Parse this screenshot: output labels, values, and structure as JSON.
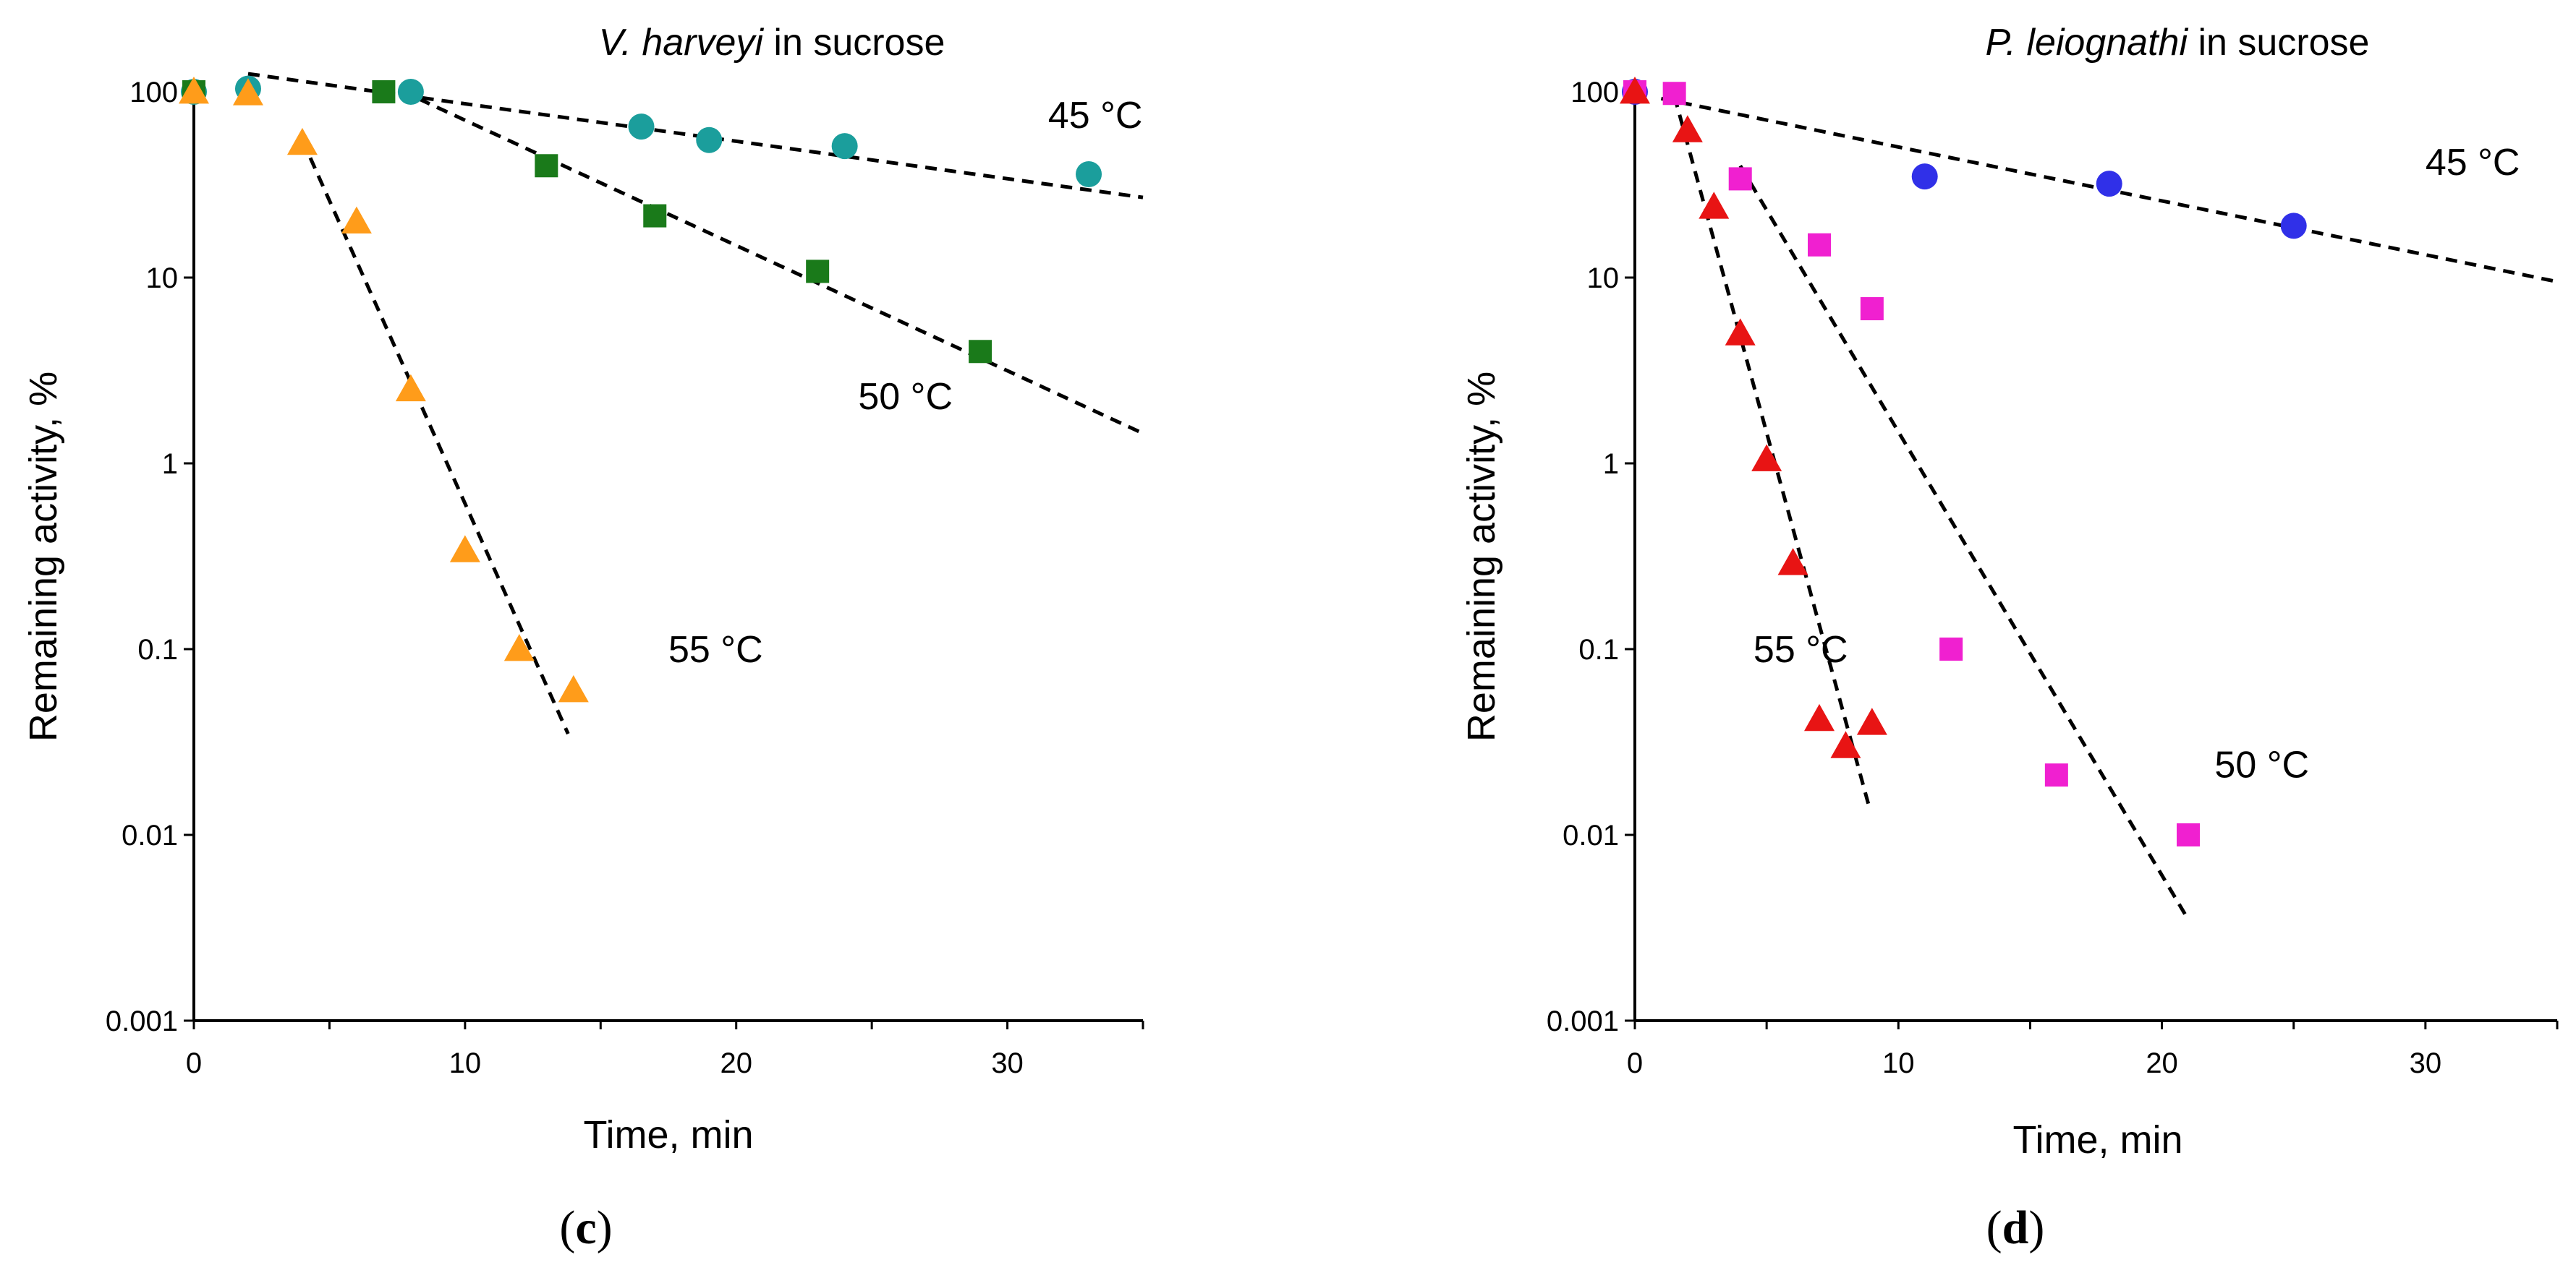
{
  "chart_data": [
    {
      "type": "scatter",
      "title_italic": "V. harveyi",
      "title_rest": " in sucrose",
      "xlabel": "Time, min",
      "ylabel": "Remaining activity, %",
      "xlim": [
        0,
        35
      ],
      "ylim": [
        0.001,
        100
      ],
      "y_scale": "log",
      "grid": false,
      "xticks": [
        0,
        10,
        20,
        30
      ],
      "xtick_labels": [
        "0",
        "10",
        "20",
        "30"
      ],
      "yticks": [
        0.001,
        0.01,
        0.1,
        1,
        10,
        100
      ],
      "ytick_labels": [
        "0.001",
        "0.01",
        "0.1",
        "1",
        "10",
        "100"
      ],
      "panel_open": "(",
      "panel_letter": "c",
      "panel_close": ")",
      "series": [
        {
          "label": "45 °C",
          "marker": "circle",
          "color": "#1b9e9c",
          "x": [
            0,
            2,
            8,
            16.5,
            19,
            24,
            33
          ],
          "y": [
            100,
            104,
            100,
            65,
            55,
            51,
            36
          ],
          "fit": {
            "x": [
              2,
              35
            ],
            "y": [
              125,
              27
            ]
          },
          "label_pos": {
            "x": 31.5,
            "y": 75
          }
        },
        {
          "label": "50 °C",
          "marker": "square",
          "color": "#1a7a1a",
          "x": [
            0,
            7,
            13,
            17,
            23,
            29
          ],
          "y": [
            100,
            100,
            40,
            21.5,
            10.8,
            4
          ],
          "fit": {
            "x": [
              7,
              35
            ],
            "y": [
              112,
              1.45
            ]
          },
          "label_pos": {
            "x": 24.5,
            "y": 2.3
          }
        },
        {
          "label": "55 °C",
          "marker": "triangle",
          "color": "#ff9c1a",
          "x": [
            0,
            2,
            4,
            6,
            8,
            10,
            12,
            14
          ],
          "y": [
            100,
            98,
            53,
            20,
            2.5,
            0.34,
            0.1,
            0.06
          ],
          "fit": {
            "x": [
              4,
              13.8
            ],
            "y": [
              55,
              0.035
            ]
          },
          "label_pos": {
            "x": 17.5,
            "y": 0.1
          }
        }
      ]
    },
    {
      "type": "scatter",
      "title_italic": "P. leiognathi",
      "title_rest": " in sucrose",
      "xlabel": "Time, min",
      "ylabel": "Remaining activity, %",
      "xlim": [
        0,
        35
      ],
      "ylim": [
        0.001,
        100
      ],
      "y_scale": "log",
      "grid": false,
      "xticks": [
        0,
        10,
        20,
        30
      ],
      "xtick_labels": [
        "0",
        "10",
        "20",
        "30"
      ],
      "yticks": [
        0.001,
        0.01,
        0.1,
        1,
        10,
        100
      ],
      "ytick_labels": [
        "0.001",
        "0.01",
        "0.1",
        "1",
        "10",
        "100"
      ],
      "panel_open": "(",
      "panel_letter": "d",
      "panel_close": ")",
      "series": [
        {
          "label": "45 °C",
          "marker": "circle",
          "color": "#3030e8",
          "x": [
            0,
            11,
            18,
            25
          ],
          "y": [
            100,
            35,
            32,
            19
          ],
          "fit": {
            "x": [
              1,
              35
            ],
            "y": [
              92,
              9.5
            ]
          },
          "label_pos": {
            "x": 30,
            "y": 42
          }
        },
        {
          "label": "50 °C",
          "marker": "square",
          "color": "#f020d0",
          "x": [
            0,
            1.5,
            4,
            7,
            9,
            12,
            16,
            21
          ],
          "y": [
            100,
            98,
            34,
            15,
            6.8,
            0.1,
            0.021,
            0.01
          ],
          "fit": {
            "x": [
              4,
              21
            ],
            "y": [
              40,
              0.0035
            ]
          },
          "label_pos": {
            "x": 22,
            "y": 0.024
          }
        },
        {
          "label": "55 °C",
          "marker": "triangle",
          "color": "#e81414",
          "x": [
            0,
            2,
            3,
            4,
            5,
            6,
            7,
            8,
            9
          ],
          "y": [
            100,
            62,
            24,
            5,
            1.05,
            0.29,
            0.042,
            0.03,
            0.04
          ],
          "fit": {
            "x": [
              1.5,
              8.9
            ],
            "y": [
              95,
              0.014
            ]
          },
          "label_pos": {
            "x": 4.5,
            "y": 0.1
          }
        }
      ]
    }
  ]
}
